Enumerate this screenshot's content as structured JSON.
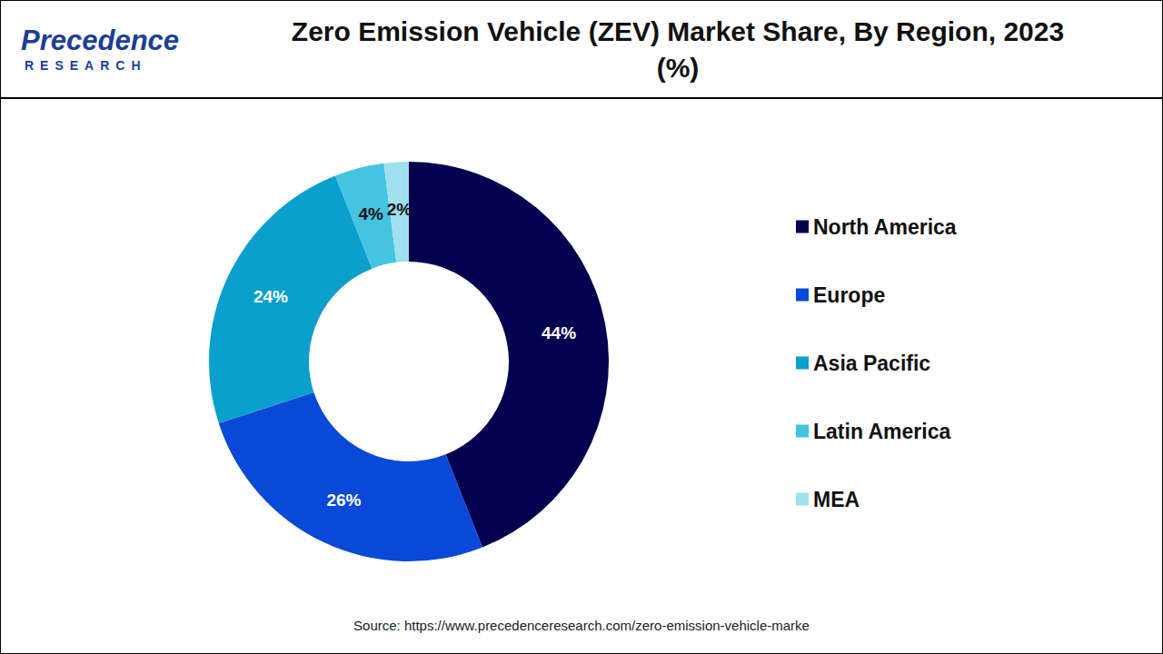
{
  "chart_data": {
    "type": "pie",
    "title": "Zero Emission Vehicle (ZEV) Market Share, By Region, 2023 (%)",
    "categories": [
      "North America",
      "Europe",
      "Asia Pacific",
      "Latin America",
      "MEA"
    ],
    "values": [
      44,
      26,
      24,
      4,
      2
    ],
    "value_labels": [
      "44%",
      "26%",
      "24%",
      "4%",
      "2%"
    ],
    "colors": [
      "#02024f",
      "#0a48d8",
      "#0a9fcc",
      "#44c4e0",
      "#9fe0ee"
    ],
    "data_labels": true,
    "legend": "right",
    "source": "Source: https://www.precedenceresearch.com/zero-emission-vehicle-marke"
  },
  "logo": {
    "name": "Precedence",
    "tagline": "RESEARCH"
  }
}
